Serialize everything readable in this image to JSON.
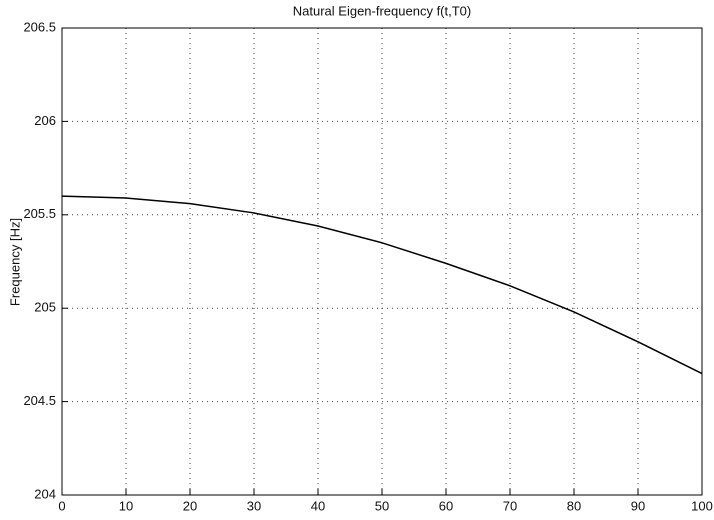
{
  "chart_data": {
    "type": "line",
    "title": "Natural Eigen-frequency f(t,T0)",
    "y_label": "Frequency [Hz]",
    "x": [
      0,
      10,
      20,
      30,
      40,
      50,
      60,
      70,
      80,
      90,
      100
    ],
    "series": [
      {
        "color": "#000000",
        "values": [
          205.6,
          205.59,
          205.56,
          205.51,
          205.44,
          205.35,
          205.24,
          205.12,
          204.98,
          204.82,
          204.65
        ]
      }
    ],
    "xlim": [
      0,
      100
    ],
    "xticks": [
      0,
      10,
      20,
      30,
      40,
      50,
      60,
      70,
      80,
      90,
      100
    ],
    "ylim": [
      204,
      206.5
    ],
    "yticks": [
      204,
      204.5,
      205,
      205.5,
      206,
      206.5
    ],
    "grid": true
  }
}
